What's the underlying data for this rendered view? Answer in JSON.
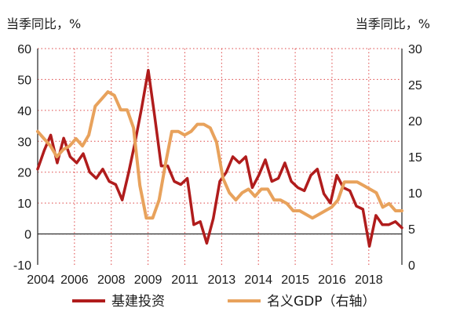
{
  "chart_data": {
    "type": "line",
    "left_unit": "当季同比，%",
    "right_unit": "当季同比，%",
    "left_axis": {
      "min": -10,
      "max": 60,
      "ticks": [
        "60",
        "50",
        "40",
        "30",
        "20",
        "10",
        "0",
        "-10"
      ]
    },
    "right_axis": {
      "min": 0,
      "max": 30,
      "ticks": [
        "30",
        "25",
        "20",
        "15",
        "10",
        "5",
        "0"
      ]
    },
    "x_ticks": [
      "2004",
      "2006",
      "2008",
      "2009",
      "2011",
      "2013",
      "2014",
      "2015",
      "2016",
      "2018"
    ],
    "grid": true,
    "legend_position": "bottom",
    "series": [
      {
        "name": "基建投资",
        "axis": "left",
        "color": "#b01c1c",
        "values": [
          21,
          27,
          32,
          23,
          31,
          25,
          23,
          26,
          20,
          18,
          21,
          17,
          16,
          11,
          20,
          30,
          41,
          53,
          38,
          22,
          22,
          17,
          16,
          18,
          3,
          4,
          -3,
          5,
          17,
          20,
          25,
          23,
          25,
          15,
          19,
          24,
          17,
          18,
          23,
          17,
          15,
          14,
          19,
          21,
          13,
          10,
          19,
          15,
          14,
          9,
          8,
          -4,
          6,
          3,
          3,
          4,
          2
        ]
      },
      {
        "name": "名义GDP（右轴）",
        "axis": "right",
        "color": "#e8a25c",
        "values": [
          18.5,
          17.5,
          16.5,
          15,
          16,
          16.5,
          17.5,
          16.5,
          18,
          22,
          23,
          24,
          23.5,
          21.5,
          21.5,
          19,
          11,
          6.5,
          6.5,
          9,
          14,
          18.5,
          18.5,
          18,
          18.5,
          19.5,
          19.5,
          19,
          17,
          12,
          10,
          9,
          10,
          10.5,
          9.5,
          10.5,
          10.5,
          9,
          9,
          8.5,
          7.5,
          7.5,
          7,
          6.5,
          7,
          7.5,
          8,
          9,
          11.5,
          11.5,
          11.5,
          11,
          10.5,
          10,
          8,
          8.5,
          7.5,
          7.5
        ]
      }
    ],
    "legend": [
      {
        "label": "基建投资",
        "color": "#b01c1c"
      },
      {
        "label": "名义GDP（右轴）",
        "color": "#e8a25c"
      }
    ]
  }
}
